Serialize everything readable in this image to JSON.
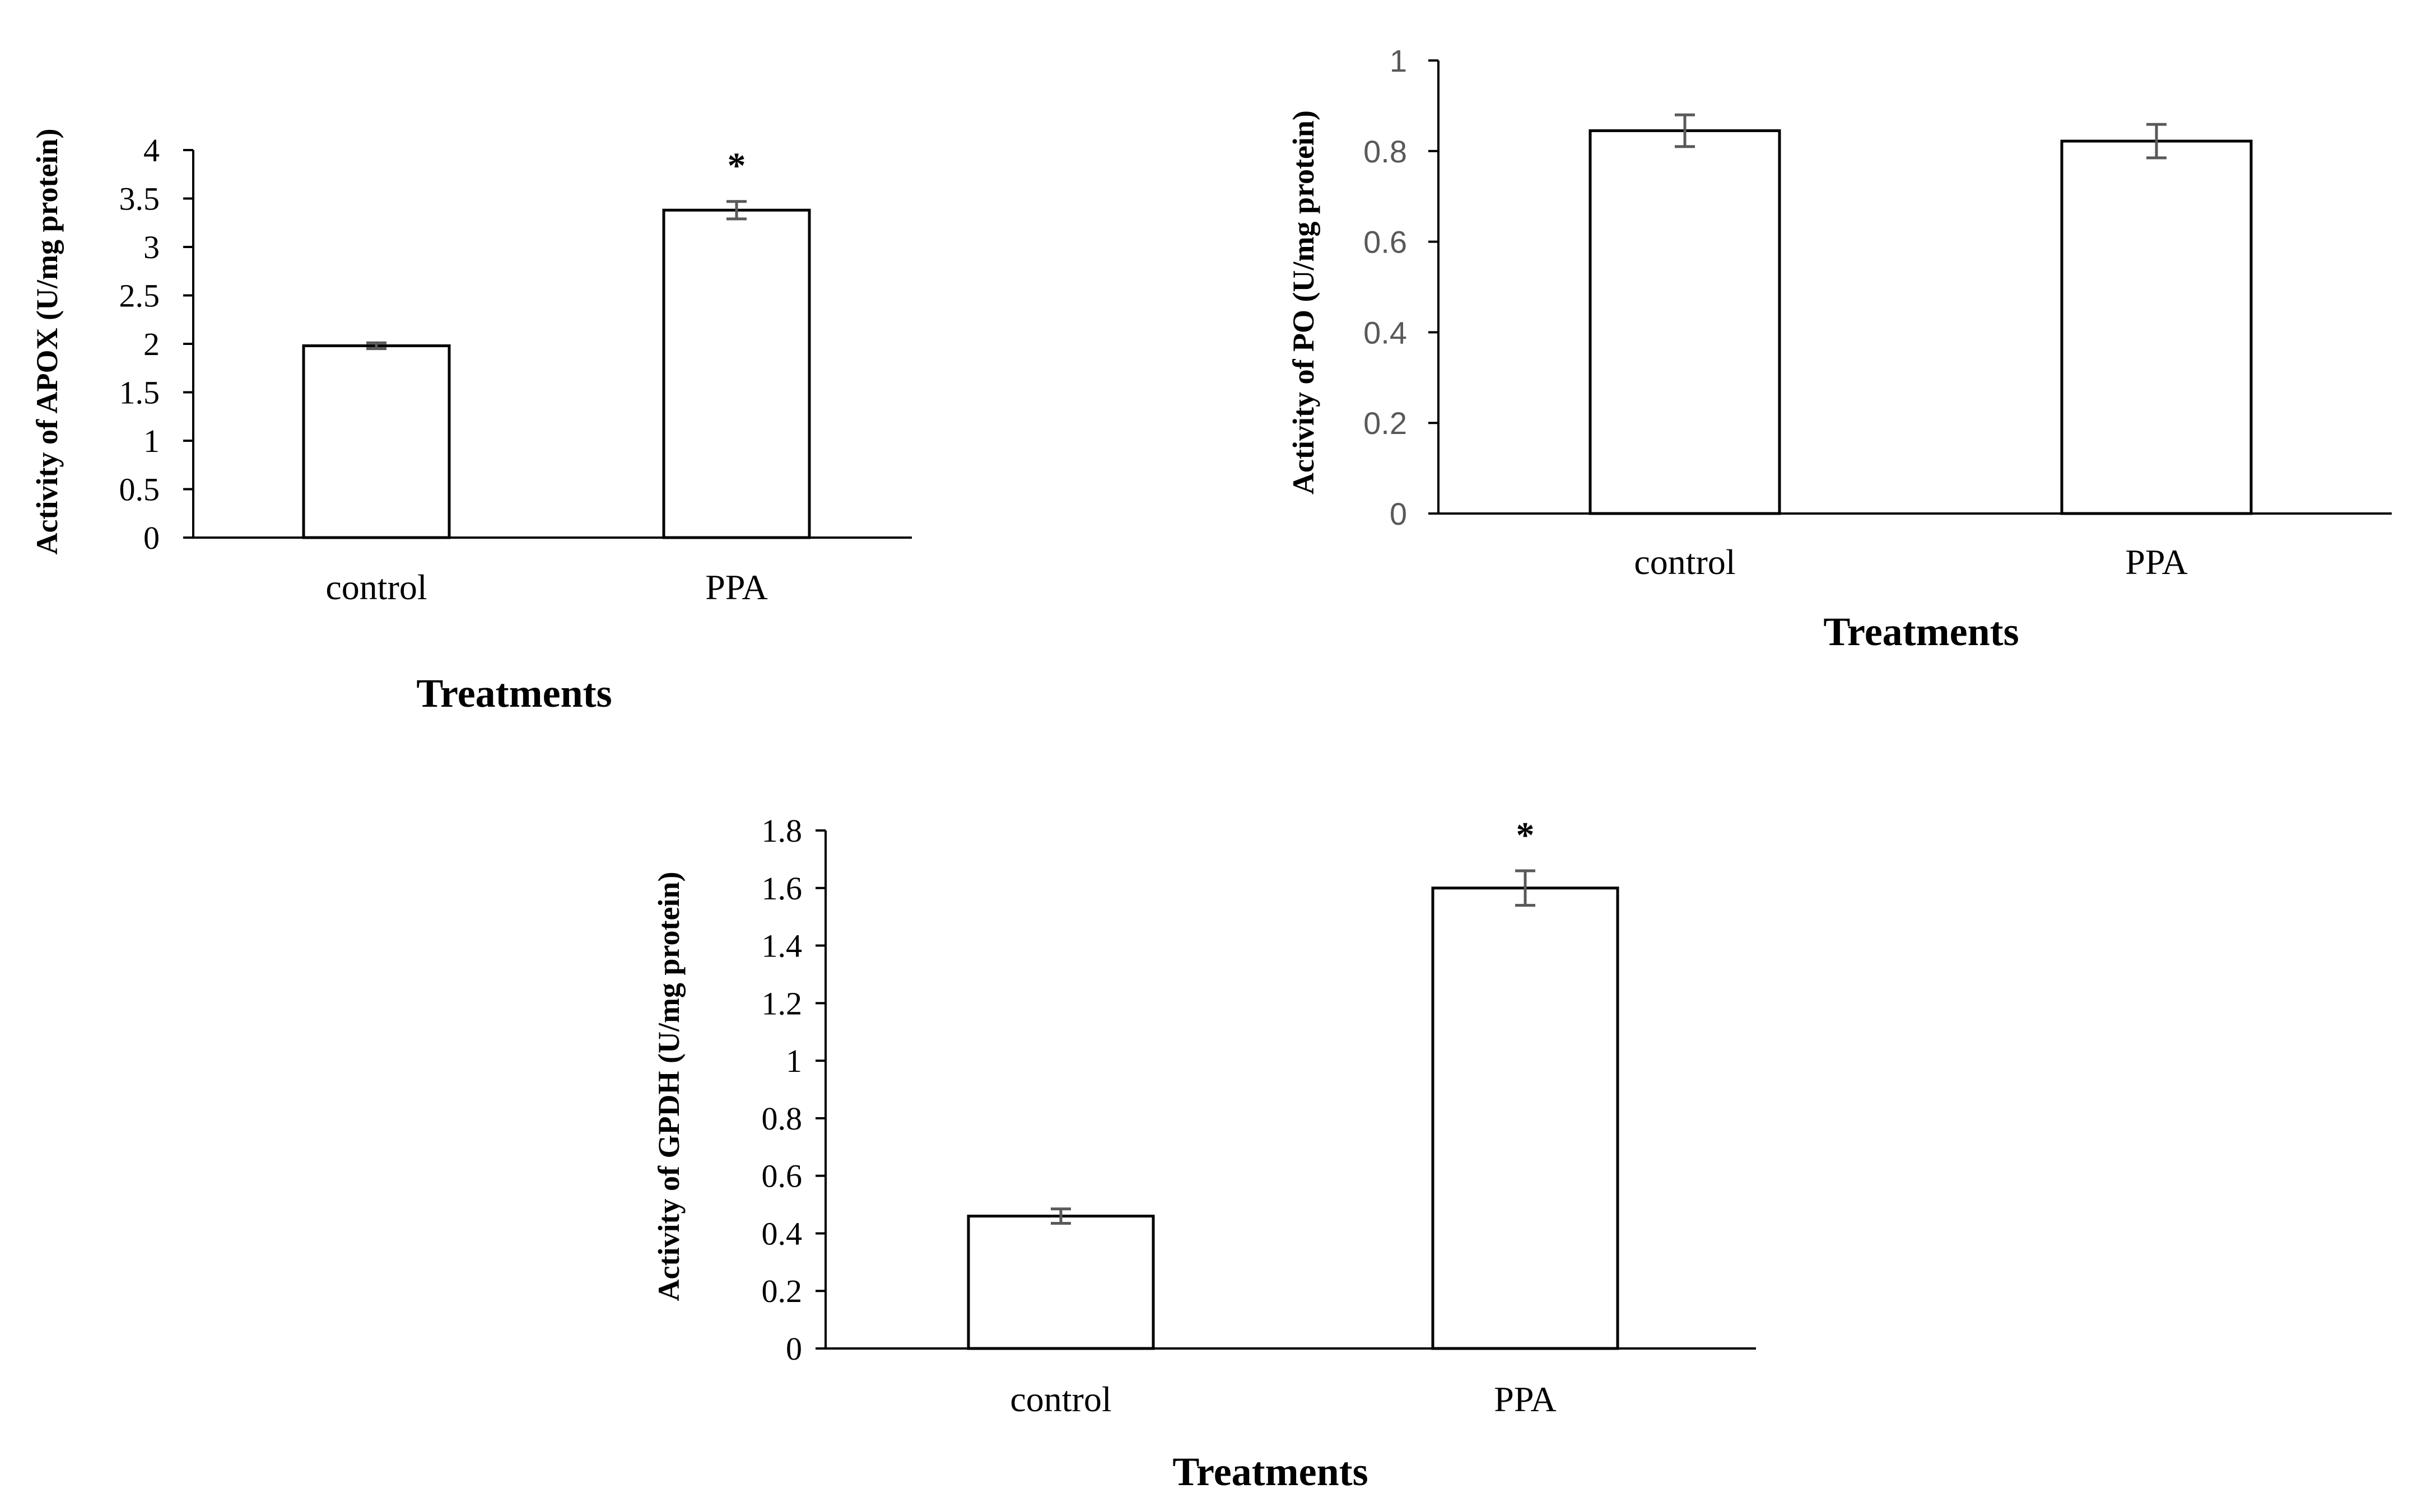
{
  "chart_data": [
    {
      "type": "bar",
      "title": "",
      "categories": [
        "control",
        "PPA"
      ],
      "values": [
        1.98,
        3.38
      ],
      "errors": [
        0.03,
        0.09
      ],
      "annotations": [
        "",
        "*"
      ],
      "xlabel": "Treatments",
      "ylabel": "Activity of APOX (U/mg protein)",
      "ylim": [
        0,
        4
      ],
      "yticks": [
        0,
        0.5,
        1,
        1.5,
        2,
        2.5,
        3,
        3.5,
        4
      ],
      "ytick_labels": [
        "0",
        "0.5",
        "1",
        "1.5",
        "2",
        "2.5",
        "3",
        "3.5",
        "4"
      ],
      "grid": false,
      "bar_fill": "#ffffff",
      "bar_edge": "#000000",
      "error_color": "#595959"
    },
    {
      "type": "bar",
      "title": "",
      "categories": [
        "control",
        "PPA"
      ],
      "values": [
        0.845,
        0.822
      ],
      "errors": [
        0.035,
        0.037
      ],
      "annotations": [
        "",
        ""
      ],
      "xlabel": "Treatments",
      "ylabel": "Activity of PO (U/mg protein)",
      "ylim": [
        0,
        1
      ],
      "yticks": [
        0,
        0.2,
        0.4,
        0.6,
        0.8,
        1
      ],
      "ytick_labels": [
        "0",
        "0.2",
        "0.4",
        "0.6",
        "0.8",
        "1"
      ],
      "grid": false,
      "bar_fill": "#ffffff",
      "bar_edge": "#000000",
      "error_color": "#595959"
    },
    {
      "type": "bar",
      "title": "",
      "categories": [
        "control",
        "PPA"
      ],
      "values": [
        0.46,
        1.6
      ],
      "errors": [
        0.025,
        0.06
      ],
      "annotations": [
        "",
        "*"
      ],
      "xlabel": "Treatments",
      "ylabel": "Activity of GPDH (U/mg protein)",
      "ylim": [
        0,
        1.8
      ],
      "yticks": [
        0,
        0.2,
        0.4,
        0.6,
        0.8,
        1,
        1.2,
        1.4,
        1.6,
        1.8
      ],
      "ytick_labels": [
        "0",
        "0.2",
        "0.4",
        "0.6",
        "0.8",
        "1",
        "1.2",
        "1.4",
        "1.6",
        "1.8"
      ],
      "grid": false,
      "bar_fill": "#ffffff",
      "bar_edge": "#000000",
      "error_color": "#595959"
    }
  ]
}
